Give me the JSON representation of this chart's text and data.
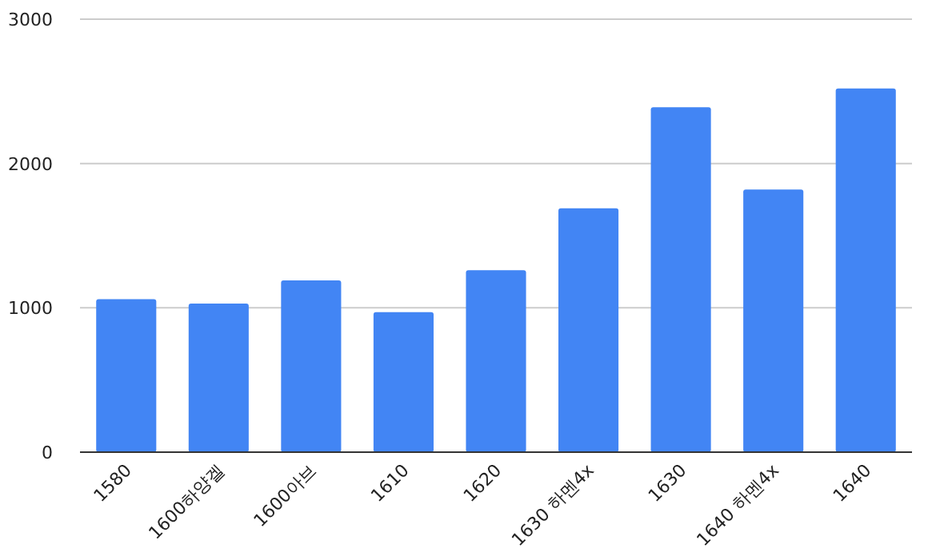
{
  "chart_data": {
    "type": "bar",
    "categories": [
      "1580",
      "1600하양겔",
      "1600아브",
      "1610",
      "1620",
      "1630 하멘4x",
      "1630",
      "1640 하멘4x",
      "1640"
    ],
    "values": [
      1060,
      1030,
      1190,
      970,
      1260,
      1690,
      2390,
      1820,
      2520
    ],
    "color": "#4285f4",
    "ylim": [
      0,
      3000
    ],
    "yticks": [
      0,
      1000,
      2000,
      3000
    ],
    "grid": "y"
  }
}
